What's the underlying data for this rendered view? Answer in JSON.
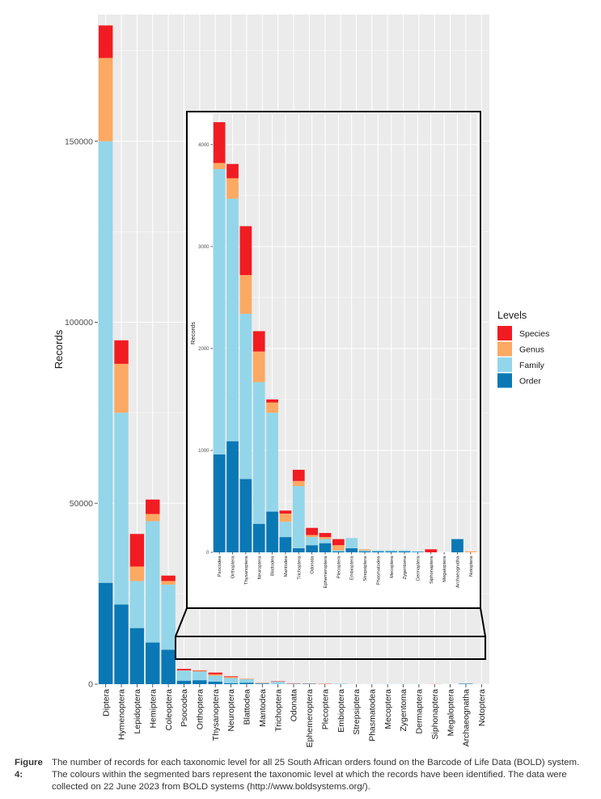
{
  "levels_order": [
    "Order",
    "Family",
    "Genus",
    "Species"
  ],
  "colors": {
    "Order": "#0a78b5",
    "Family": "#93d6ea",
    "Genus": "#fca963",
    "Species": "#f11c22",
    "panel_bg": "#ebebeb",
    "grid": "#ffffff",
    "frame": "#000000"
  },
  "legend": {
    "title": "Levels",
    "items": [
      {
        "label": "Species",
        "key": "Species"
      },
      {
        "label": "Genus",
        "key": "Genus"
      },
      {
        "label": "Family",
        "key": "Family"
      },
      {
        "label": "Order",
        "key": "Order"
      }
    ]
  },
  "chart_data": [
    {
      "type": "bar",
      "stacked": true,
      "ylabel": "Records",
      "xlabel": "",
      "ylim": [
        0,
        185000
      ],
      "yticks": [
        0,
        50000,
        100000,
        150000
      ],
      "categories": [
        "Diptera",
        "Hymenoptera",
        "Lepidoptera",
        "Hemiptera",
        "Coleoptera",
        "Psocodea",
        "Orthoptera",
        "Thysanoptera",
        "Neuroptera",
        "Blattodea",
        "Mantodea",
        "Trichoptera",
        "Odonata",
        "Ephemeroptera",
        "Plecoptera",
        "Embioptera",
        "Strepsiptera",
        "Phasmatodea",
        "Mecoptera",
        "Zygentoma",
        "Dermaptera",
        "Siphonaptera",
        "Megaloptera",
        "Archaeognatha",
        "Notoptera"
      ],
      "series": [
        {
          "name": "Order",
          "values": [
            28000,
            22000,
            15500,
            11500,
            9500,
            960,
            1090,
            720,
            280,
            400,
            150,
            40,
            70,
            90,
            10,
            40,
            10,
            10,
            10,
            10,
            5,
            0,
            0,
            130,
            0
          ]
        },
        {
          "name": "Family",
          "values": [
            122000,
            53000,
            13000,
            33500,
            18000,
            2800,
            2380,
            1620,
            1390,
            970,
            150,
            610,
            80,
            40,
            10,
            100,
            10,
            10,
            10,
            10,
            5,
            0,
            0,
            0,
            0
          ]
        },
        {
          "name": "Genus",
          "values": [
            23000,
            13500,
            4000,
            2000,
            1000,
            60,
            200,
            380,
            300,
            100,
            80,
            50,
            20,
            20,
            50,
            0,
            10,
            0,
            0,
            0,
            0,
            0,
            0,
            0,
            10
          ]
        },
        {
          "name": "Species",
          "values": [
            9000,
            6500,
            9000,
            4000,
            1500,
            400,
            140,
            480,
            200,
            30,
            30,
            110,
            70,
            40,
            60,
            0,
            0,
            0,
            0,
            0,
            0,
            30,
            0,
            0,
            0
          ]
        }
      ]
    },
    {
      "type": "bar",
      "stacked": true,
      "title": "inset",
      "ylabel": "Records",
      "xlabel": "",
      "ylim": [
        0,
        4300
      ],
      "yticks": [
        0,
        1000,
        2000,
        3000,
        4000
      ],
      "categories": [
        "Psocodea",
        "Orthoptera",
        "Thysanoptera",
        "Neuroptera",
        "Blattodea",
        "Mantodea",
        "Trichoptera",
        "Odonata",
        "Ephemeroptera",
        "Plecoptera",
        "Embioptera",
        "Strepsiptera",
        "Phasmatodea",
        "Mecoptera",
        "Zygentoma",
        "Dermaptera",
        "Siphonaptera",
        "Megaloptera",
        "Archaeognatha",
        "Notoptera"
      ],
      "series": [
        {
          "name": "Order",
          "values": [
            960,
            1090,
            720,
            280,
            400,
            150,
            40,
            70,
            90,
            10,
            40,
            10,
            10,
            10,
            10,
            5,
            0,
            0,
            130,
            0
          ]
        },
        {
          "name": "Family",
          "values": [
            2800,
            2380,
            1620,
            1390,
            970,
            150,
            610,
            80,
            40,
            10,
            100,
            10,
            10,
            10,
            10,
            5,
            0,
            0,
            0,
            0
          ]
        },
        {
          "name": "Genus",
          "values": [
            60,
            200,
            380,
            300,
            100,
            80,
            50,
            20,
            20,
            50,
            0,
            10,
            0,
            0,
            0,
            0,
            0,
            0,
            0,
            10
          ]
        },
        {
          "name": "Species",
          "values": [
            400,
            140,
            480,
            200,
            30,
            30,
            110,
            70,
            40,
            60,
            0,
            0,
            0,
            0,
            0,
            0,
            30,
            0,
            0,
            0
          ]
        }
      ]
    }
  ],
  "caption": {
    "label": "Figure 4:",
    "text": "The number of records for each taxonomic level for all 25 South African orders found on the Barcode of Life Data (BOLD) system. The colours within the segmented bars represent the taxonomic level at which the records have been identified. The data were collected on 22 June 2023 from BOLD systems (http://www.boldsystems.org/)."
  }
}
